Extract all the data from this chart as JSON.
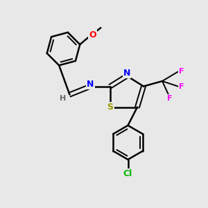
{
  "bg_color": "#e8e8e8",
  "bond_color": "#000000",
  "atom_colors": {
    "N": "#0000ff",
    "S": "#999900",
    "O": "#ff0000",
    "F": "#ff00ff",
    "Cl": "#00bb00",
    "H": "#666666",
    "C": "#000000"
  },
  "figsize": [
    3.0,
    3.0
  ],
  "dpi": 100,
  "xlim": [
    0,
    10
  ],
  "ylim": [
    0,
    10
  ]
}
